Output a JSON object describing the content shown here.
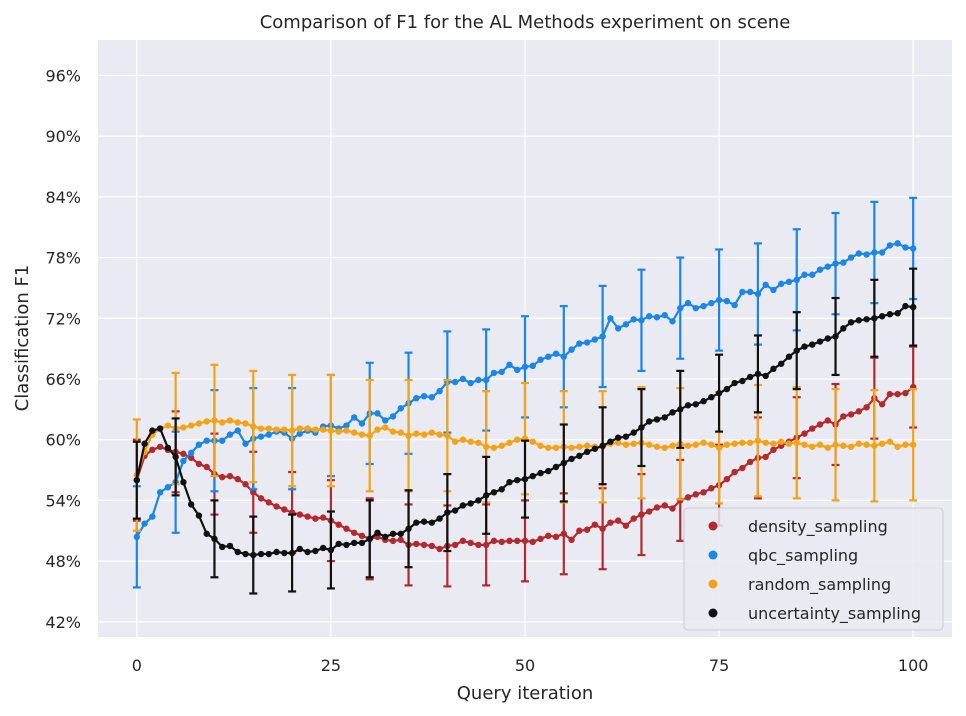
{
  "chart_data": {
    "type": "line",
    "title": "Comparison of F1 for the AL Methods experiment on scene",
    "xlabel": "Query iteration",
    "ylabel": "Classification F1",
    "xlim": [
      -5,
      105
    ],
    "ylim": [
      40.5,
      99.5
    ],
    "xticks": [
      0,
      25,
      50,
      75,
      100
    ],
    "yticks": [
      42,
      48,
      54,
      60,
      66,
      72,
      78,
      84,
      90,
      96
    ],
    "ytick_suffix": "%",
    "grid": true,
    "legend_position": "lower-right",
    "error_bar_interval": 5,
    "x": [
      0,
      1,
      2,
      3,
      4,
      5,
      6,
      7,
      8,
      9,
      10,
      11,
      12,
      13,
      14,
      15,
      16,
      17,
      18,
      19,
      20,
      21,
      22,
      23,
      24,
      25,
      26,
      27,
      28,
      29,
      30,
      31,
      32,
      33,
      34,
      35,
      36,
      37,
      38,
      39,
      40,
      41,
      42,
      43,
      44,
      45,
      46,
      47,
      48,
      49,
      50,
      51,
      52,
      53,
      54,
      55,
      56,
      57,
      58,
      59,
      60,
      61,
      62,
      63,
      64,
      65,
      66,
      67,
      68,
      69,
      70,
      71,
      72,
      73,
      74,
      75,
      76,
      77,
      78,
      79,
      80,
      81,
      82,
      83,
      84,
      85,
      86,
      87,
      88,
      89,
      90,
      91,
      92,
      93,
      94,
      95,
      96,
      97,
      98,
      99,
      100
    ],
    "series": [
      {
        "name": "density_sampling",
        "color": "#b22a2e",
        "values": [
          56.0,
          58.4,
          59.0,
          59.3,
          59.0,
          58.8,
          58.6,
          58.2,
          57.6,
          57.3,
          56.6,
          56.3,
          56.4,
          56.1,
          55.6,
          54.8,
          54.2,
          53.8,
          53.4,
          53.1,
          52.8,
          52.6,
          52.4,
          52.2,
          52.3,
          52.0,
          51.6,
          51.2,
          50.8,
          50.5,
          50.2,
          50.4,
          50.1,
          50.0,
          50.1,
          49.6,
          49.7,
          49.6,
          49.5,
          49.2,
          49.5,
          49.6,
          50.0,
          49.8,
          49.6,
          49.6,
          50.0,
          49.9,
          50.0,
          50.0,
          50.0,
          49.9,
          50.2,
          50.5,
          50.4,
          50.7,
          50.1,
          51.0,
          51.1,
          51.6,
          51.2,
          51.8,
          52.0,
          51.5,
          52.2,
          52.6,
          52.9,
          53.3,
          53.5,
          53.2,
          54.0,
          54.3,
          54.6,
          54.8,
          55.2,
          55.5,
          56.1,
          56.8,
          57.2,
          57.8,
          58.2,
          58.3,
          59.0,
          59.4,
          59.8,
          60.2,
          60.6,
          61.1,
          61.5,
          61.9,
          61.5,
          62.3,
          62.5,
          62.8,
          63.2,
          64.1,
          63.5,
          64.5,
          64.5,
          64.6,
          65.2
        ]
      },
      {
        "name": "qbc_sampling",
        "color": "#1a86e8",
        "values": [
          50.4,
          51.7,
          52.4,
          54.8,
          55.3,
          55.8,
          57.9,
          58.7,
          59.5,
          59.9,
          59.9,
          59.9,
          60.5,
          60.9,
          59.6,
          60.1,
          60.3,
          60.5,
          60.8,
          60.7,
          60.1,
          60.6,
          60.9,
          60.7,
          61.3,
          61.4,
          61.1,
          61.4,
          62.2,
          61.6,
          62.6,
          62.6,
          61.9,
          62.3,
          63.1,
          63.6,
          64.1,
          64.3,
          64.2,
          64.8,
          65.7,
          65.7,
          66.0,
          65.6,
          65.9,
          65.9,
          66.6,
          66.7,
          67.4,
          66.9,
          67.2,
          67.3,
          67.9,
          68.2,
          68.5,
          68.2,
          68.9,
          69.5,
          69.6,
          69.9,
          70.2,
          72.0,
          71.0,
          71.4,
          71.9,
          71.8,
          72.2,
          72.1,
          72.3,
          71.7,
          73.0,
          73.5,
          73.0,
          73.2,
          73.5,
          73.8,
          73.7,
          73.3,
          74.6,
          74.6,
          74.4,
          75.3,
          74.8,
          75.4,
          75.6,
          75.8,
          76.3,
          76.3,
          76.8,
          77.1,
          77.4,
          77.5,
          78.0,
          78.4,
          78.3,
          78.5,
          78.5,
          79.2,
          79.4,
          79.0,
          78.9
        ]
      },
      {
        "name": "random_sampling",
        "color": "#f4a316",
        "values": [
          56.5,
          58.8,
          60.5,
          61.1,
          61.4,
          61.1,
          61.2,
          61.4,
          61.6,
          61.8,
          61.9,
          61.7,
          61.9,
          61.7,
          61.6,
          61.3,
          61.1,
          61.1,
          61.0,
          61.0,
          60.9,
          61.1,
          61.1,
          61.0,
          61.0,
          60.9,
          60.8,
          60.9,
          60.7,
          60.5,
          60.4,
          61.0,
          61.2,
          60.8,
          60.7,
          60.4,
          60.6,
          60.5,
          60.7,
          60.5,
          60.4,
          59.8,
          60.0,
          59.8,
          59.7,
          59.3,
          59.2,
          59.4,
          59.7,
          60.0,
          60.1,
          59.8,
          59.4,
          59.2,
          59.2,
          59.3,
          59.2,
          59.3,
          59.4,
          59.3,
          59.3,
          59.6,
          59.7,
          59.5,
          59.6,
          59.7,
          59.5,
          59.3,
          59.2,
          59.4,
          59.6,
          59.4,
          59.5,
          59.7,
          59.5,
          59.2,
          59.5,
          59.6,
          59.7,
          59.7,
          59.9,
          59.7,
          59.6,
          59.8,
          59.6,
          59.7,
          59.5,
          59.3,
          59.5,
          59.2,
          59.5,
          59.4,
          59.3,
          59.6,
          59.5,
          59.4,
          59.6,
          59.8,
          59.3,
          59.5,
          59.5
        ]
      },
      {
        "name": "uncertainty_sampling",
        "color": "#111111",
        "values": [
          56.0,
          59.6,
          60.9,
          61.1,
          59.2,
          58.3,
          55.8,
          53.6,
          52.5,
          50.7,
          50.2,
          49.4,
          49.5,
          48.9,
          48.7,
          48.6,
          48.7,
          48.7,
          48.9,
          48.8,
          48.8,
          49.2,
          48.9,
          49.0,
          49.3,
          49.1,
          49.7,
          49.6,
          49.8,
          49.8,
          50.2,
          50.8,
          50.4,
          50.7,
          50.7,
          51.2,
          51.8,
          51.9,
          51.8,
          52.2,
          52.8,
          53.0,
          53.5,
          53.7,
          54.0,
          54.5,
          54.8,
          55.1,
          55.8,
          56.0,
          56.1,
          56.4,
          56.7,
          56.9,
          57.3,
          57.7,
          58.1,
          58.4,
          58.8,
          59.1,
          59.4,
          59.8,
          60.2,
          60.3,
          60.7,
          61.2,
          61.8,
          62.0,
          62.2,
          62.7,
          63.0,
          63.4,
          63.5,
          63.8,
          64.2,
          64.6,
          65.0,
          65.6,
          65.8,
          66.2,
          66.5,
          66.3,
          67.0,
          67.5,
          68.2,
          68.8,
          69.2,
          69.4,
          69.7,
          70.0,
          70.2,
          71.0,
          71.6,
          71.8,
          71.9,
          72.0,
          72.2,
          72.4,
          72.5,
          73.2,
          73.1
        ]
      }
    ]
  }
}
